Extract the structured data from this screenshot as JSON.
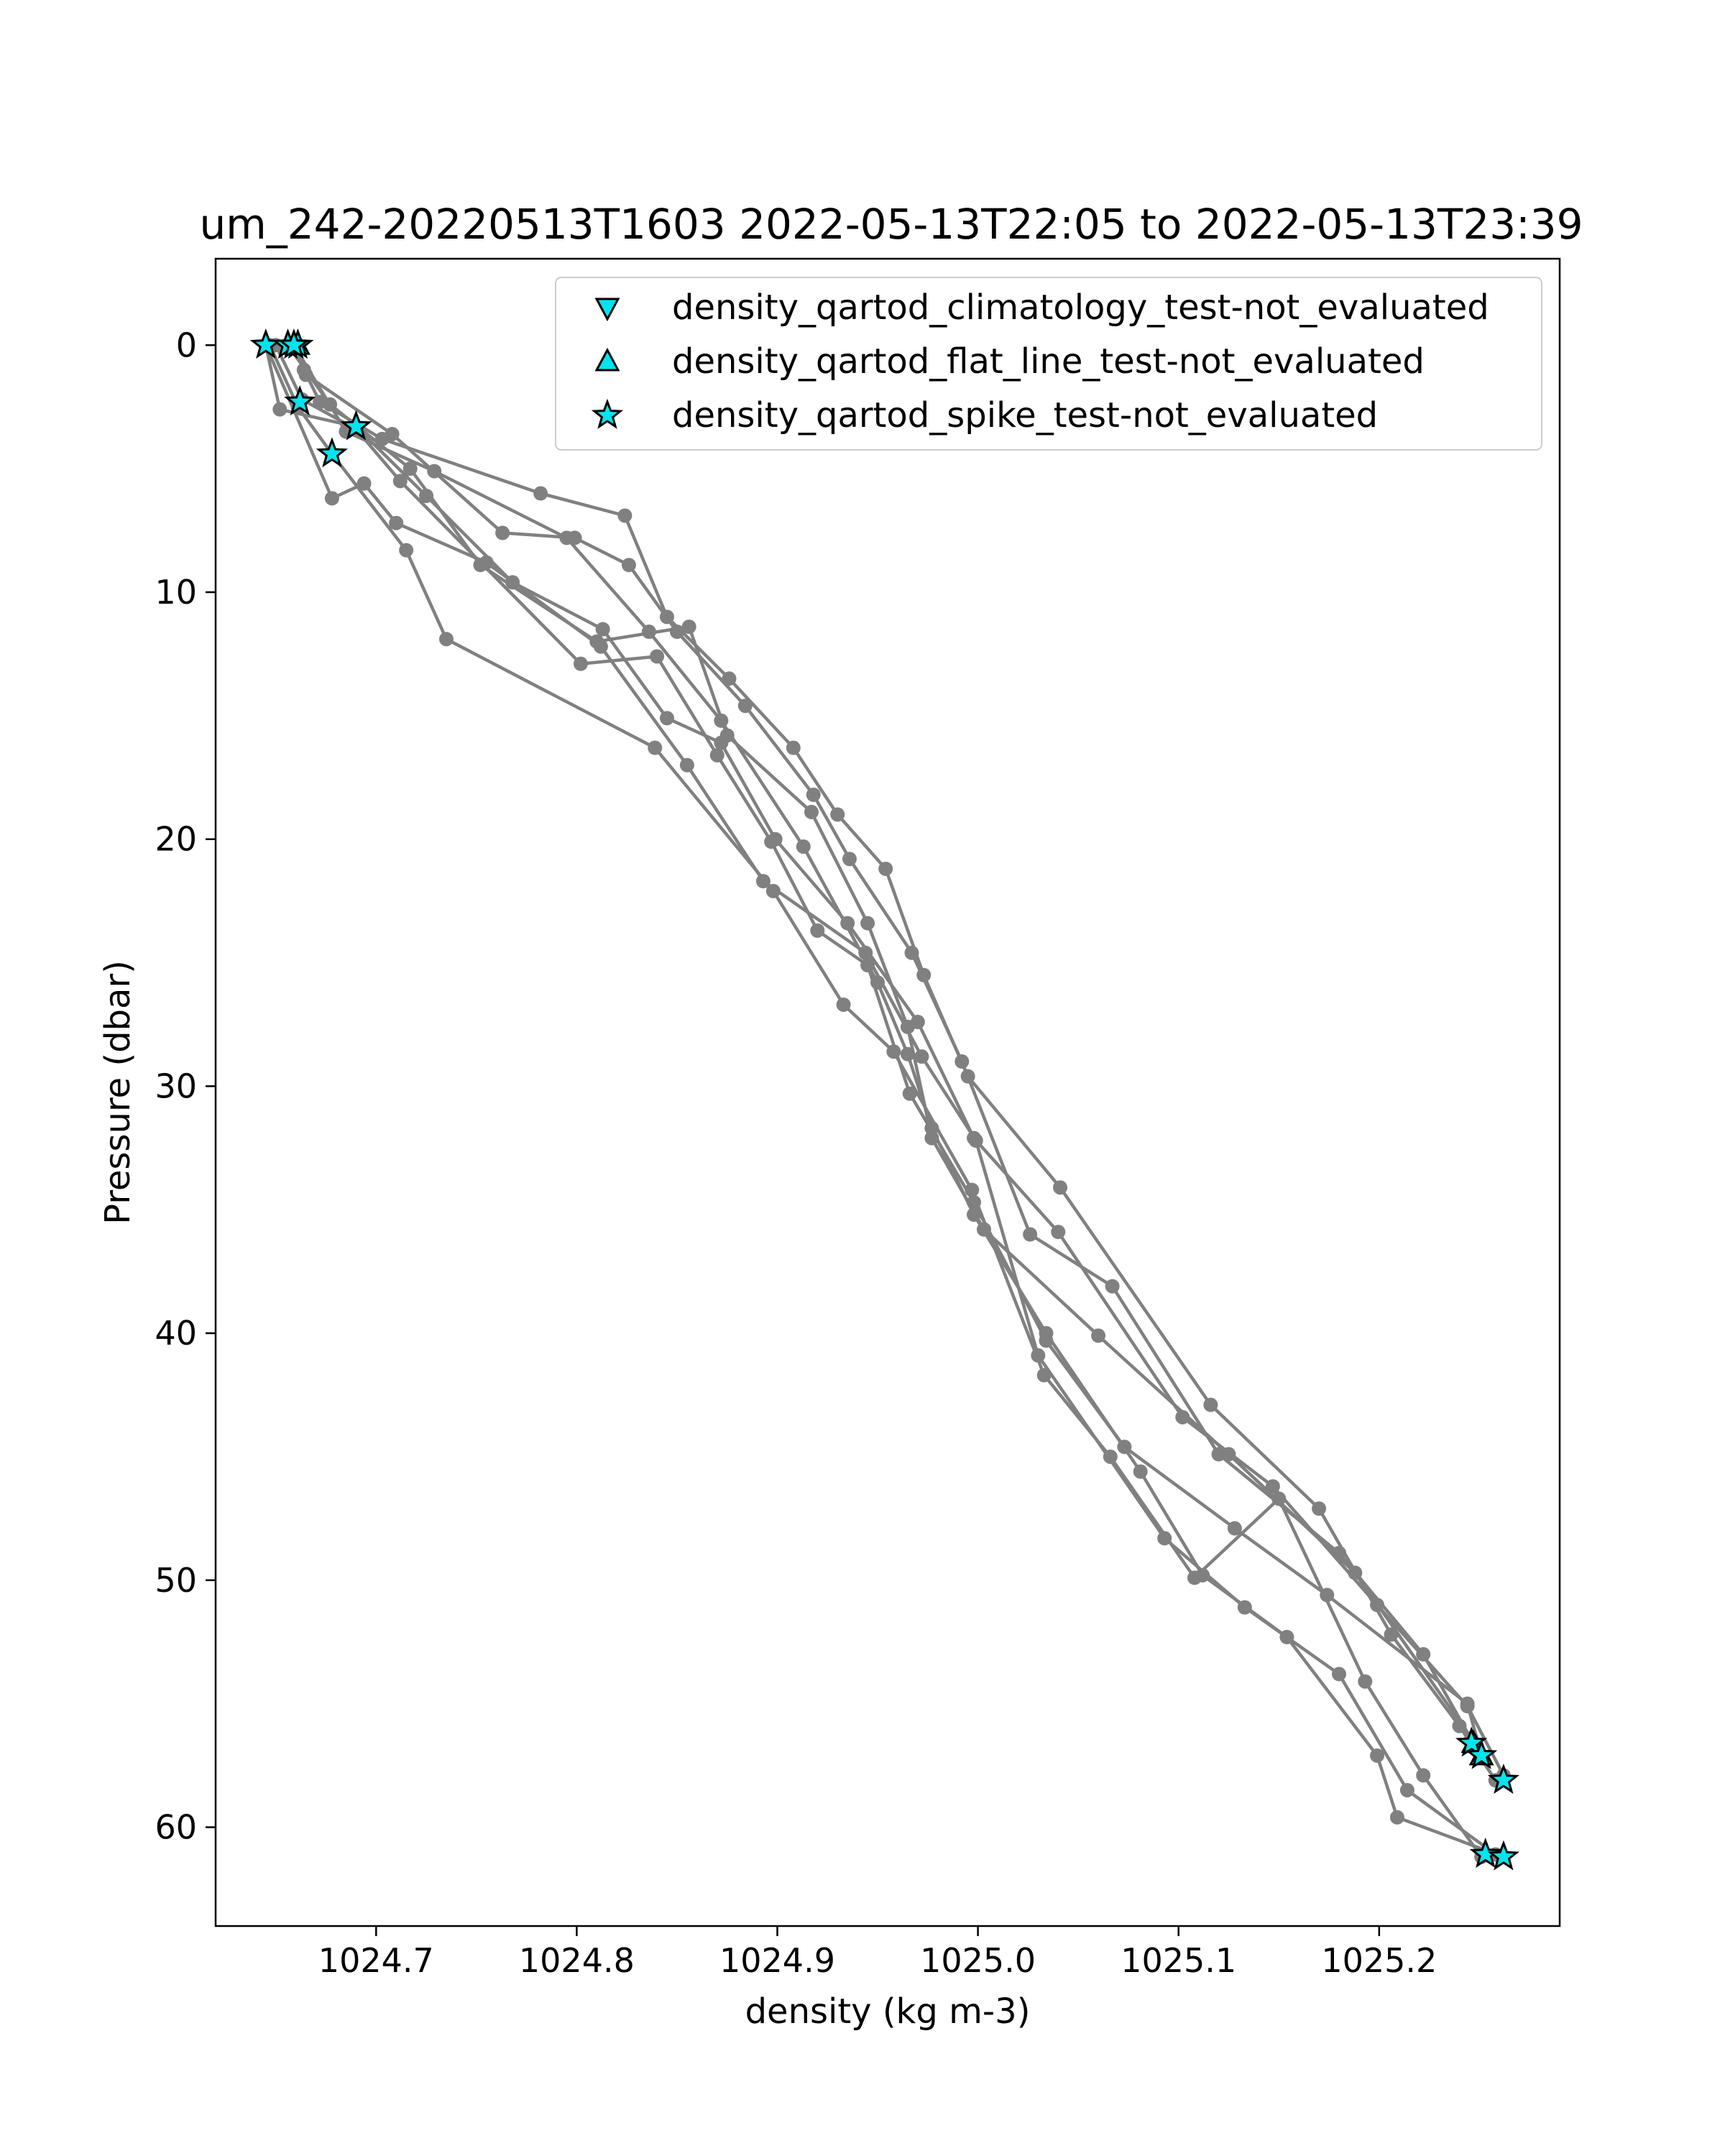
{
  "chart_data": {
    "type": "scatter",
    "title": "um_242-20220513T1603 2022-05-13T22:05 to 2022-05-13T23:39",
    "xlabel": "density (kg m-3)",
    "ylabel": "Pressure (dbar)",
    "xlim": [
      1024.62,
      1025.29
    ],
    "ylim": [
      64.0,
      -3.5
    ],
    "y_inverted": true,
    "xticks": [
      1024.7,
      1024.8,
      1024.9,
      1025.0,
      1025.1,
      1025.2
    ],
    "xtick_labels": [
      "1024.7",
      "1024.8",
      "1024.9",
      "1025.0",
      "1025.1",
      "1025.2"
    ],
    "yticks": [
      0,
      10,
      20,
      30,
      40,
      50,
      60
    ],
    "ytick_labels": [
      "0",
      "10",
      "20",
      "30",
      "40",
      "50",
      "60"
    ],
    "grid": false,
    "legend_position": "top-right",
    "colors": {
      "profile": "#808080",
      "flag_fill": "#00e5ee",
      "flag_edge": "#000000"
    },
    "profile_series": [
      {
        "x": [
          1024.661,
          1024.664,
          1024.672,
          1024.703,
          1024.782,
          1024.824,
          1024.845,
          1024.876,
          1024.908,
          1024.93,
          1024.954,
          1024.973,
          1024.995,
          1025.041,
          1025.116,
          1025.17,
          1025.206,
          1025.24,
          1025.258
        ],
        "y": [
          0.0,
          1.0,
          2.3,
          3.8,
          6.0,
          6.9,
          11.0,
          13.5,
          16.3,
          19.0,
          21.2,
          25.5,
          29.6,
          34.1,
          42.9,
          47.1,
          52.2,
          55.9,
          58.1
        ]
      },
      {
        "x": [
          1024.659,
          1024.665,
          1024.708,
          1024.763,
          1024.799,
          1024.826,
          1024.85,
          1024.884,
          1024.918,
          1024.936,
          1024.967,
          1024.992,
          1025.026,
          1025.067,
          1025.12,
          1025.18,
          1025.222,
          1025.247
        ],
        "y": [
          0.0,
          1.2,
          3.6,
          7.6,
          7.8,
          8.9,
          11.6,
          14.6,
          18.2,
          20.8,
          24.6,
          29.0,
          36.0,
          38.1,
          44.9,
          48.9,
          53.0,
          56.6
        ]
      },
      {
        "x": [
          1024.656,
          1024.677,
          1024.717,
          1024.752,
          1024.81,
          1024.856,
          1024.875,
          1024.917,
          1024.945,
          1024.965,
          1024.977,
          1025.003,
          1025.06,
          1025.125,
          1025.188,
          1025.246
        ],
        "y": [
          0.0,
          2.4,
          5.0,
          8.9,
          12.0,
          11.4,
          15.8,
          18.9,
          23.4,
          27.6,
          32.1,
          35.8,
          40.1,
          44.9,
          49.7,
          56.4
        ]
      },
      {
        "x": [
          1024.645,
          1024.652,
          1024.69,
          1024.725,
          1024.768,
          1024.813,
          1024.845,
          1024.872,
          1024.899,
          1024.935,
          1024.97,
          1024.998,
          1025.04,
          1025.102,
          1025.147,
          1025.199,
          1025.244,
          1025.262
        ],
        "y": [
          0.0,
          2.6,
          3.3,
          6.1,
          9.6,
          11.5,
          15.1,
          16.1,
          20.0,
          23.4,
          27.4,
          32.1,
          35.9,
          43.4,
          46.2,
          51.0,
          55.1,
          57.9
        ]
      },
      {
        "x": [
          1024.65,
          1024.663,
          1024.69,
          1024.712,
          1024.802,
          1024.84,
          1024.87,
          1024.897,
          1024.92,
          1024.945,
          1024.966,
          1024.998,
          1025.034,
          1025.073,
          1025.128,
          1025.174,
          1025.244,
          1025.251
        ],
        "y": [
          0.0,
          2.2,
          3.4,
          5.5,
          12.9,
          12.6,
          16.6,
          20.1,
          23.7,
          25.1,
          30.3,
          34.7,
          40.3,
          44.6,
          47.9,
          50.6,
          55.0,
          57.1
        ]
      },
      {
        "x": [
          1024.647,
          1024.661,
          1024.678,
          1024.715,
          1024.735,
          1024.839,
          1024.898,
          1024.933,
          1024.958,
          1024.997,
          1025.033,
          1025.066,
          1025.108,
          1025.15,
          1025.193,
          1025.222,
          1025.251
        ],
        "y": [
          0.0,
          2.5,
          4.4,
          8.3,
          11.9,
          16.3,
          22.1,
          26.7,
          28.6,
          34.2,
          41.7,
          45.0,
          49.9,
          46.7,
          54.1,
          57.9,
          61.2
        ]
      },
      {
        "x": [
          1024.645,
          1024.678,
          1024.694,
          1024.71,
          1024.755,
          1024.812,
          1024.855,
          1024.893,
          1024.944,
          1024.972,
          1024.999,
          1025.03,
          1025.093,
          1025.133,
          1025.18,
          1025.214,
          1025.258
        ],
        "y": [
          0.0,
          6.2,
          5.6,
          7.2,
          8.8,
          12.2,
          17.0,
          21.7,
          24.6,
          28.8,
          32.2,
          40.9,
          48.3,
          51.1,
          53.8,
          58.5,
          61.1
        ]
      },
      {
        "x": [
          1024.659,
          1024.685,
          1024.729,
          1024.795,
          1024.836,
          1024.872,
          1024.913,
          1024.95,
          1024.965,
          1024.977,
          1024.998,
          1025.034,
          1025.081,
          1025.112,
          1025.154,
          1025.199,
          1025.209,
          1025.262
        ],
        "y": [
          0.0,
          3.5,
          5.1,
          7.8,
          11.6,
          15.2,
          20.3,
          25.8,
          28.7,
          31.7,
          35.2,
          40.0,
          45.6,
          49.8,
          52.3,
          57.1,
          59.6,
          61.2
        ]
      }
    ],
    "flag_series": [
      {
        "name": "density_qartod_climatology_test-not_evaluated",
        "marker": "triangle_down",
        "x": [],
        "y": []
      },
      {
        "name": "density_qartod_flat_line_test-not_evaluated",
        "marker": "triangle_up",
        "x": [
          1024.661,
          1024.659,
          1025.247,
          1025.251
        ],
        "y": [
          0.0,
          0.0,
          56.6,
          57.1
        ]
      },
      {
        "name": "density_qartod_spike_test-not_evaluated",
        "marker": "star",
        "x": [
          1024.645,
          1024.656,
          1024.661,
          1024.659,
          1024.662,
          1024.69,
          1024.678,
          1025.246,
          1025.251,
          1025.262,
          1025.253,
          1025.262
        ],
        "y": [
          0.0,
          0.0,
          0.0,
          0.0,
          2.3,
          3.3,
          4.4,
          56.6,
          57.1,
          58.1,
          61.1,
          61.2
        ]
      }
    ]
  }
}
